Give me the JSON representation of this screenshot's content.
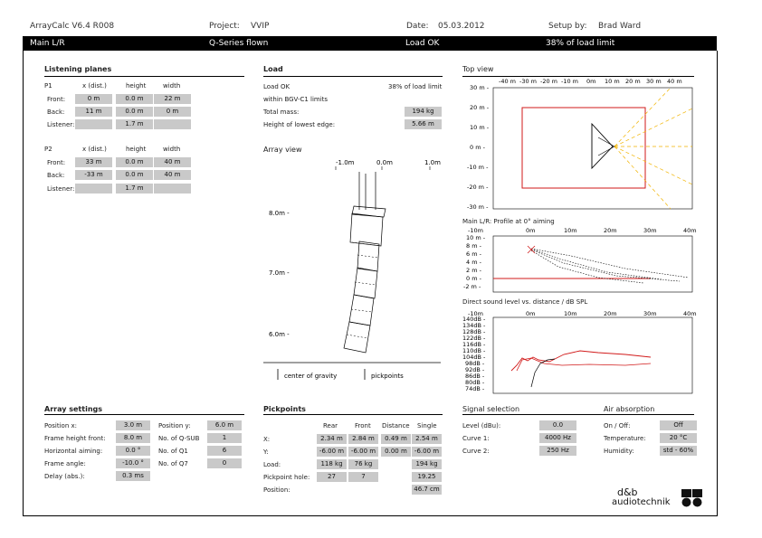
{
  "header": {
    "app": "ArrayCalc V6.4 R008",
    "project_label": "Project:",
    "project": "VVIP",
    "date_label": "Date:",
    "date": "05.03.2012",
    "setup_label": "Setup by:",
    "setup": "Brad Ward"
  },
  "bar": {
    "main": "Main L/R",
    "series": "Q-Series flown",
    "load": "Load OK",
    "limit": "38% of load limit"
  },
  "listening": {
    "title": "Listening planes",
    "col_x": "x (dist.)",
    "col_h": "height",
    "col_w": "width",
    "p1": "P1",
    "p2": "P2",
    "front": "Front:",
    "back": "Back:",
    "listener": "Listener:",
    "p1_front": [
      "0 m",
      "0.0 m",
      "22 m"
    ],
    "p1_back": [
      "11 m",
      "0.0 m",
      "0 m"
    ],
    "p1_listener": "1.7 m",
    "p2_front": [
      "33 m",
      "0.0 m",
      "40 m"
    ],
    "p2_back": [
      "-33 m",
      "0.0 m",
      "40 m"
    ],
    "p2_listener": "1.7 m"
  },
  "load": {
    "title": "Load",
    "status": "Load OK",
    "pct": "38% of load limit",
    "within": "within BGV-C1 limits",
    "mass_label": "Total mass:",
    "mass": "194 kg",
    "edge_label": "Height of lowest edge:",
    "edge": "5.66 m"
  },
  "array_view": {
    "title": "Array view",
    "x_ticks": [
      "-1.0m",
      "0.0m",
      "1.0m"
    ],
    "y_ticks": [
      "8.0m -",
      "7.0m -",
      "6.0m -"
    ],
    "legend_cog": "center of gravity",
    "legend_pick": "pickpoints"
  },
  "top_view": {
    "title": "Top view",
    "x_ticks": [
      "-40 m",
      "-30 m",
      "-20 m",
      "-10 m",
      "0m",
      "10 m",
      "20 m",
      "30 m",
      "40 m"
    ],
    "y_ticks": [
      "30 m -",
      "20 m -",
      "10 m -",
      "0 m -",
      "-10 m -",
      "-20 m -",
      "-30 m -"
    ]
  },
  "profile": {
    "title": "Main L/R: Profile at 0° aiming",
    "x_ticks": [
      "-10m",
      "0m",
      "10m",
      "20m",
      "30m",
      "40m"
    ],
    "y_ticks": [
      "10 m -",
      "8 m -",
      "6 m -",
      "4 m -",
      "2 m -",
      "0 m -",
      "-2 m -"
    ]
  },
  "spl": {
    "title": "Direct sound level vs. distance / dB SPL",
    "x_ticks": [
      "-10m",
      "0m",
      "10m",
      "20m",
      "30m",
      "40m"
    ],
    "y_ticks": [
      "140dB -",
      "134dB -",
      "128dB -",
      "122dB -",
      "116dB -",
      "110dB -",
      "104dB -",
      "98dB -",
      "92dB -",
      "86dB -",
      "80dB -",
      "74dB -"
    ]
  },
  "array_settings": {
    "title": "Array settings",
    "pos_x_label": "Position x:",
    "pos_x": "3.0 m",
    "pos_y_label": "Position y:",
    "pos_y": "6.0 m",
    "frame_h_label": "Frame height front:",
    "frame_h": "8.0 m",
    "qsub_label": "No. of Q-SUB",
    "qsub": "1",
    "horiz_label": "Horizontal aiming:",
    "horiz": "0.0 °",
    "q1_label": "No. of Q1",
    "q1": "6",
    "angle_label": "Frame angle:",
    "angle": "-10.0 °",
    "q7_label": "No. of Q7",
    "q7": "0",
    "delay_label": "Delay (abs.):",
    "delay": "0.3 ms"
  },
  "pickpoints": {
    "title": "Pickpoints",
    "cols": [
      "Rear",
      "Front",
      "Distance",
      "Single"
    ],
    "x_label": "X:",
    "x_vals": [
      "2.34 m",
      "2.84 m",
      "0.49 m",
      "2.54 m"
    ],
    "y_label": "Y:",
    "y_vals": [
      "-6.00 m",
      "-6.00 m",
      "0.00 m",
      "-6.00 m"
    ],
    "load_label": "Load:",
    "load_vals": [
      "118 kg",
      "76 kg",
      "194 kg"
    ],
    "hole_label": "Pickpoint hole:",
    "hole_vals": [
      "27",
      "7",
      "19.25"
    ],
    "pos_label": "Position:",
    "pos_val": "46.7 cm"
  },
  "signal": {
    "title": "Signal selection",
    "level_label": "Level (dBu):",
    "level": "0.0",
    "c1_label": "Curve 1:",
    "c1": "4000 Hz",
    "c2_label": "Curve 2:",
    "c2": "250 Hz"
  },
  "air": {
    "title": "Air absorption",
    "onoff_label": "On / Off:",
    "onoff": "Off",
    "temp_label": "Temperature:",
    "temp": "20 °C",
    "hum_label": "Humidity:",
    "hum": "std - 60%"
  },
  "logo": {
    "line1": "d&b",
    "line2": "audiotechnik"
  },
  "colors": {
    "red": "#d11a1a",
    "yellow": "#f2b400",
    "grey_box": "#c9c9c9"
  }
}
